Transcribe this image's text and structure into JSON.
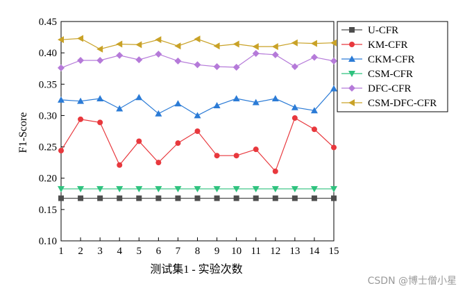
{
  "chart_data": {
    "type": "line",
    "xlabel": "测试集1 - 实验次数",
    "ylabel": "F1-Score",
    "x": [
      1,
      2,
      3,
      4,
      5,
      6,
      7,
      8,
      9,
      10,
      11,
      12,
      13,
      14,
      15
    ],
    "xlim": [
      1,
      15
    ],
    "ylim": [
      0.1,
      0.45
    ],
    "yticks": [
      "0.10",
      "0.15",
      "0.20",
      "0.25",
      "0.30",
      "0.35",
      "0.40",
      "0.45"
    ],
    "xticks": [
      "1",
      "2",
      "3",
      "4",
      "5",
      "6",
      "7",
      "8",
      "9",
      "10",
      "11",
      "12",
      "13",
      "14",
      "15"
    ],
    "grid": false,
    "legend_position": "right",
    "series": [
      {
        "name": "U-CFR",
        "color": "#4d4d4d",
        "marker": "square",
        "values": [
          0.168,
          0.168,
          0.168,
          0.168,
          0.168,
          0.168,
          0.168,
          0.168,
          0.168,
          0.168,
          0.168,
          0.168,
          0.168,
          0.168,
          0.168
        ]
      },
      {
        "name": "KM-CFR",
        "color": "#e8383d",
        "marker": "circle",
        "values": [
          0.244,
          0.294,
          0.289,
          0.221,
          0.259,
          0.225,
          0.256,
          0.275,
          0.236,
          0.236,
          0.246,
          0.211,
          0.296,
          0.278,
          0.249
        ]
      },
      {
        "name": "CKM-CFR",
        "color": "#2b7bd6",
        "marker": "triangle-up",
        "values": [
          0.325,
          0.323,
          0.327,
          0.311,
          0.329,
          0.303,
          0.319,
          0.3,
          0.316,
          0.327,
          0.321,
          0.327,
          0.313,
          0.308,
          0.343
        ]
      },
      {
        "name": "CSM-CFR",
        "color": "#2ec27e",
        "marker": "triangle-down",
        "values": [
          0.183,
          0.183,
          0.183,
          0.183,
          0.183,
          0.183,
          0.183,
          0.183,
          0.183,
          0.183,
          0.183,
          0.183,
          0.183,
          0.183,
          0.183
        ]
      },
      {
        "name": "DFC-CFR",
        "color": "#b57ad9",
        "marker": "diamond",
        "values": [
          0.376,
          0.388,
          0.388,
          0.396,
          0.389,
          0.398,
          0.387,
          0.381,
          0.378,
          0.377,
          0.399,
          0.397,
          0.378,
          0.393,
          0.387
        ]
      },
      {
        "name": "CSM-DFC-CFR",
        "color": "#c9a227",
        "marker": "triangle-left",
        "values": [
          0.421,
          0.423,
          0.406,
          0.414,
          0.413,
          0.421,
          0.411,
          0.422,
          0.411,
          0.414,
          0.41,
          0.41,
          0.416,
          0.415,
          0.416
        ]
      }
    ]
  },
  "watermark": "CSDN @博士僧小星"
}
